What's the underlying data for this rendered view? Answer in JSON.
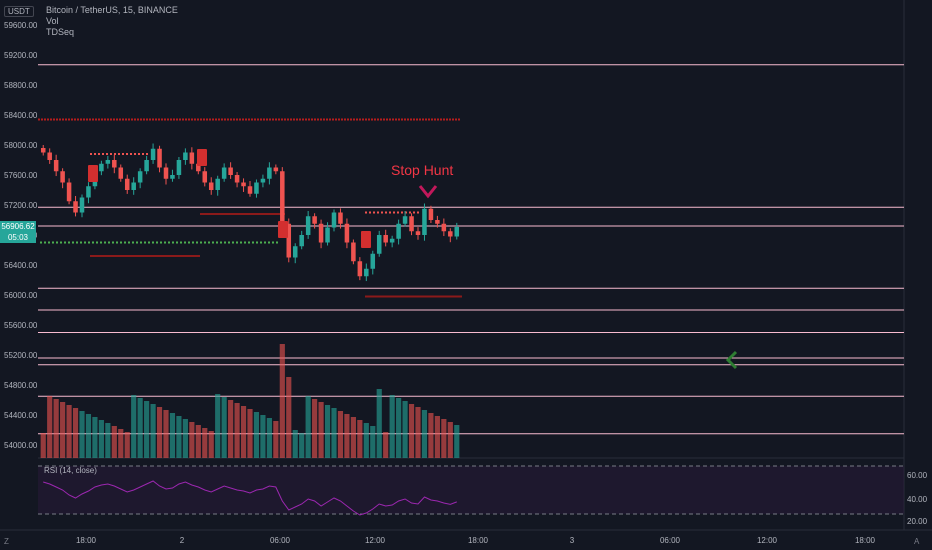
{
  "currency_badge": "USDT",
  "legend": {
    "symbol": "Bitcoin / TetherUS, 15, BINANCE",
    "indicator_vol": "Vol",
    "indicator_tdseq": "TDSeq"
  },
  "last_price": {
    "value": "56906.62",
    "countdown": "05:03",
    "color": "#26a69a"
  },
  "rsi_panel": {
    "label": "RSI (14, close)",
    "ticks": [
      "60.00",
      "40.00",
      "20.00"
    ]
  },
  "annotation": {
    "text": "Stop Hunt",
    "color": "#f23645"
  },
  "bottom": {
    "left_icon": "Z",
    "right_icon": "A"
  },
  "colors": {
    "up": "#26a69a",
    "down": "#ef5350",
    "background": "#131722",
    "rsi_line": "#9c27b0"
  },
  "chart_data": {
    "type": "candlestick",
    "y_ticks": [
      59600,
      59200,
      58800,
      58400,
      58000,
      57600,
      57200,
      56800,
      56400,
      56000,
      55600,
      55200,
      54800,
      54400,
      54000
    ],
    "y_tick_labels": [
      "59600.00",
      "59200.00",
      "58800.00",
      "58400.00",
      "58000.00",
      "57600.00",
      "57200.00",
      "56800.00",
      "56400.00",
      "56000.00",
      "55600.00",
      "55200.00",
      "54800.00",
      "54400.00",
      "54000.00"
    ],
    "x_tick_labels": [
      "18:00",
      "2",
      "06:00",
      "12:00",
      "18:00",
      "3",
      "06:00",
      "12:00",
      "18:00"
    ],
    "horizontal_levels": [
      59070,
      57170,
      56920,
      56090,
      55800,
      55500,
      55160,
      55070,
      54650,
      54150
    ],
    "dotted_levels": [
      58340
    ],
    "close_series": [
      57900,
      57800,
      57650,
      57500,
      57250,
      57100,
      57300,
      57450,
      57650,
      57750,
      57800,
      57700,
      57550,
      57400,
      57500,
      57650,
      57800,
      57950,
      57700,
      57550,
      57600,
      57800,
      57900,
      57750,
      57650,
      57500,
      57400,
      57550,
      57700,
      57600,
      57500,
      57450,
      57350,
      57500,
      57550,
      57700,
      57650,
      56950,
      56500,
      56650,
      56800,
      57050,
      56950,
      56700,
      56900,
      57100,
      56950,
      56700,
      56450,
      56250,
      56350,
      56550,
      56800,
      56700,
      56750,
      56950,
      57050,
      56850,
      56800,
      57150,
      57000,
      56950,
      56850,
      56780,
      56906.62
    ],
    "stop_hunt_price": 57180
  }
}
